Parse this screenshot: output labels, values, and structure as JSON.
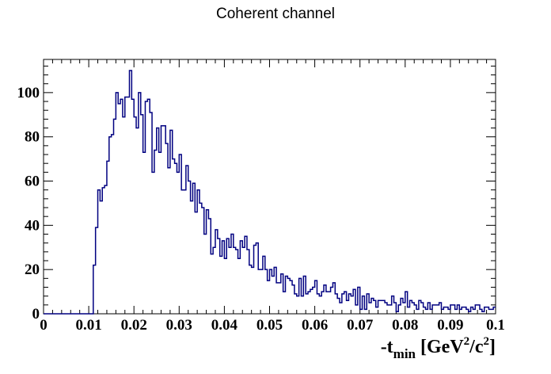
{
  "chart_data": {
    "type": "histogram",
    "title": "Coherent channel",
    "xlabel": {
      "main": "-t",
      "sub": "min",
      "unit_prefix": " [GeV",
      "sup1": "2",
      "unit_mid": "/c",
      "sup2": "2",
      "unit_suffix": "]"
    },
    "ylabel": "",
    "xlim": [
      0,
      0.1
    ],
    "ylim": [
      0,
      115
    ],
    "x_ticks": [
      0,
      0.01,
      0.02,
      0.03,
      0.04,
      0.05,
      0.06,
      0.07,
      0.08,
      0.09,
      0.1
    ],
    "x_tick_labels": [
      "0",
      "0.01",
      "0.02",
      "0.03",
      "0.04",
      "0.05",
      "0.06",
      "0.07",
      "0.08",
      "0.09",
      "0.1"
    ],
    "y_ticks": [
      0,
      20,
      40,
      60,
      80,
      100
    ],
    "y_tick_labels": [
      "0",
      "20",
      "40",
      "60",
      "80",
      "100"
    ],
    "bin_width": 0.0005,
    "bin_start": 0,
    "line_color": "#000080",
    "values": [
      0,
      0,
      0,
      0,
      0,
      0,
      0,
      0,
      0,
      0,
      0,
      0,
      0,
      0,
      0,
      0,
      0,
      0,
      0,
      0,
      0,
      0,
      22,
      39,
      56,
      51,
      57,
      58,
      69,
      80,
      81,
      88,
      100,
      95,
      97,
      89,
      98,
      98,
      110,
      97,
      89,
      84,
      100,
      90,
      73,
      96,
      97,
      91,
      64,
      74,
      84,
      73,
      85,
      85,
      77,
      66,
      83,
      70,
      68,
      64,
      72,
      56,
      56,
      67,
      60,
      51,
      59,
      46,
      56,
      50,
      48,
      36,
      47,
      43,
      27,
      30,
      38,
      34,
      26,
      33,
      25,
      34,
      30,
      36,
      30,
      29,
      25,
      33,
      30,
      35,
      29,
      22,
      21,
      31,
      32,
      20,
      20,
      26,
      20,
      15,
      20,
      17,
      21,
      14,
      14,
      18,
      10,
      17,
      16,
      15,
      13,
      9,
      8,
      16,
      8,
      17,
      9,
      10,
      11,
      12,
      15,
      9,
      8,
      10,
      13,
      10,
      10,
      12,
      14,
      9,
      7,
      5,
      9,
      10,
      6,
      9,
      8,
      11,
      4,
      12,
      2,
      8,
      2,
      9,
      5,
      7,
      6,
      3,
      6,
      6,
      6,
      5,
      4,
      4,
      8,
      5,
      1,
      4,
      7,
      5,
      10,
      3,
      6,
      5,
      4,
      2,
      6,
      5,
      3,
      2,
      5,
      2,
      4,
      4,
      4,
      5,
      2,
      3,
      3,
      2,
      4,
      4,
      2,
      4,
      2,
      3,
      3,
      2,
      1,
      3,
      2,
      4,
      4,
      2,
      1,
      3,
      3,
      2,
      2,
      3
    ]
  }
}
